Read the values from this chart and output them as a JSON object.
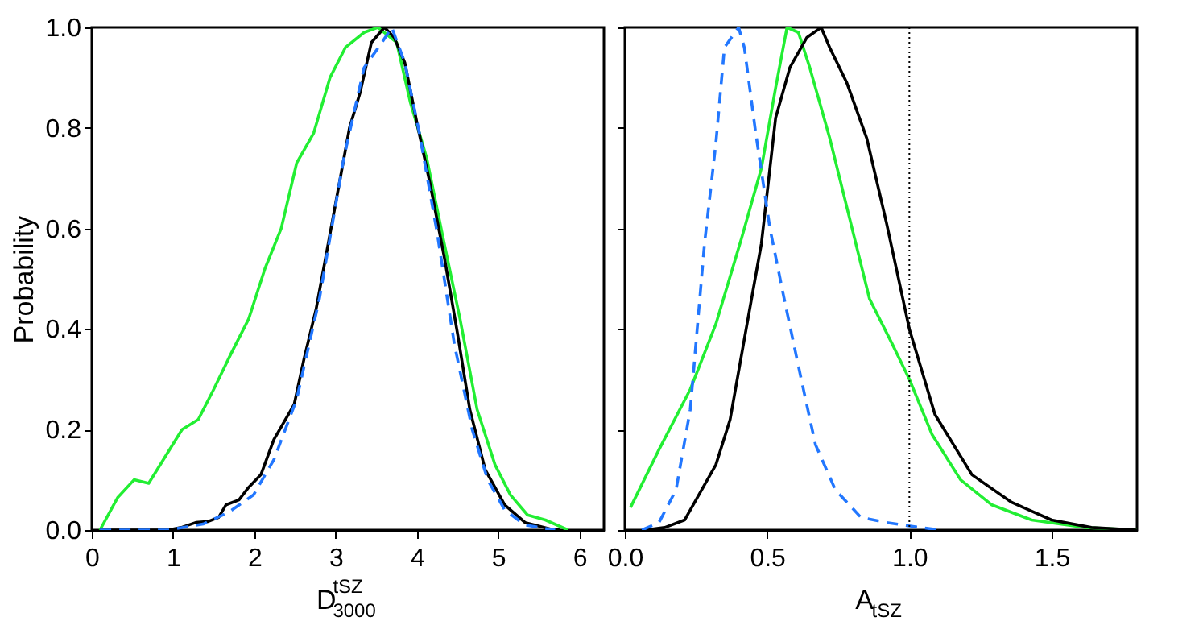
{
  "chart_data": [
    {
      "type": "line",
      "xlabel": "D$^{tSZ}$$_{3000}$",
      "ylabel": "Probability",
      "xlim": [
        0,
        6.3
      ],
      "xticks": [
        0,
        1,
        2,
        3,
        4,
        5,
        6
      ],
      "ylim": [
        0,
        1.0
      ],
      "yticks": [
        {
          "value": 0,
          "label": "0.0"
        },
        {
          "value": 0.2,
          "label": "0.2"
        },
        {
          "value": 0.4,
          "label": "0.4"
        },
        {
          "value": 0.6,
          "label": "0.6"
        },
        {
          "value": 0.8,
          "label": "0.8"
        },
        {
          "value": 1.0,
          "label": "1.0"
        }
      ],
      "grid": false,
      "series": [
        {
          "color": "#22ee33",
          "line_style": "solid",
          "x": [
            0.1,
            0.32,
            0.52,
            0.7,
            1.11,
            1.31,
            1.5,
            1.71,
            1.93,
            2.13,
            2.33,
            2.52,
            2.73,
            2.93,
            3.12,
            3.35,
            3.52,
            3.75,
            3.92,
            4.12,
            4.31,
            4.53,
            4.74,
            4.96,
            5.15,
            5.36,
            5.58,
            5.86
          ],
          "values": [
            0,
            0.065,
            0.1,
            0.093,
            0.2,
            0.22,
            0.28,
            0.35,
            0.42,
            0.52,
            0.6,
            0.73,
            0.79,
            0.9,
            0.96,
            0.99,
            1.0,
            0.97,
            0.85,
            0.74,
            0.59,
            0.42,
            0.24,
            0.13,
            0.07,
            0.03,
            0.02,
            0
          ]
        },
        {
          "color": "#000000",
          "line_style": "solid",
          "x": [
            0.1,
            0.94,
            1.1,
            1.28,
            1.43,
            1.56,
            1.65,
            1.81,
            1.93,
            2.08,
            2.24,
            2.49,
            2.61,
            2.76,
            2.92,
            3.17,
            3.3,
            3.44,
            3.6,
            3.72,
            3.85,
            4.0,
            4.16,
            4.34,
            4.5,
            4.65,
            4.84,
            5.08,
            5.33,
            5.64,
            5.76
          ],
          "values": [
            0,
            0,
            0.005,
            0.015,
            0.017,
            0.025,
            0.05,
            0.06,
            0.085,
            0.11,
            0.18,
            0.25,
            0.34,
            0.44,
            0.58,
            0.8,
            0.87,
            0.97,
            1.0,
            0.98,
            0.93,
            0.81,
            0.69,
            0.54,
            0.39,
            0.24,
            0.12,
            0.05,
            0.015,
            0.002,
            0
          ]
        },
        {
          "color": "#2277ff",
          "line_style": "dashed",
          "x": [
            0.1,
            0.94,
            1.37,
            1.68,
            1.99,
            2.24,
            2.52,
            2.8,
            3.1,
            3.35,
            3.57,
            3.69,
            3.85,
            4.03,
            4.25,
            4.46,
            4.68,
            4.87,
            5.08,
            5.33,
            5.7
          ],
          "values": [
            0,
            0,
            0.012,
            0.035,
            0.07,
            0.14,
            0.26,
            0.46,
            0.74,
            0.92,
            0.97,
            1.0,
            0.93,
            0.79,
            0.59,
            0.37,
            0.2,
            0.1,
            0.04,
            0.01,
            0
          ]
        }
      ]
    },
    {
      "type": "line",
      "xlabel": "A$_{tSZ}$",
      "xlim": [
        0,
        1.8
      ],
      "xticks": [
        {
          "value": 0,
          "label": "0.0"
        },
        {
          "value": 0.5,
          "label": "0.5"
        },
        {
          "value": 1.0,
          "label": "1.0"
        },
        {
          "value": 1.5,
          "label": "1.5"
        }
      ],
      "ylim": [
        0,
        1.0
      ],
      "yticks": [
        {
          "value": 0,
          "label": null
        },
        {
          "value": 0.2,
          "label": null
        },
        {
          "value": 0.4,
          "label": null
        },
        {
          "value": 0.6,
          "label": null
        },
        {
          "value": 0.8,
          "label": null
        },
        {
          "value": 1.0,
          "label": null
        }
      ],
      "tick_labels": "x",
      "grid": false,
      "ref_lines": [
        {
          "axis": "x",
          "value": 1.0,
          "color": "#000000",
          "line_style": "dotted"
        }
      ],
      "series": [
        {
          "color": "#22ee33",
          "line_style": "solid",
          "x": [
            0.02,
            0.12,
            0.23,
            0.32,
            0.41,
            0.48,
            0.53,
            0.57,
            0.61,
            0.65,
            0.72,
            0.79,
            0.86,
            0.94,
            1.0,
            1.08,
            1.18,
            1.29,
            1.43,
            1.62,
            1.8
          ],
          "values": [
            0.045,
            0.16,
            0.28,
            0.41,
            0.58,
            0.72,
            0.88,
            1.0,
            0.99,
            0.92,
            0.78,
            0.62,
            0.46,
            0.37,
            0.3,
            0.19,
            0.1,
            0.05,
            0.02,
            0.005,
            0
          ]
        },
        {
          "color": "#000000",
          "line_style": "solid",
          "x": [
            0.07,
            0.14,
            0.21,
            0.32,
            0.37,
            0.42,
            0.48,
            0.53,
            0.58,
            0.64,
            0.69,
            0.72,
            0.78,
            0.85,
            0.92,
            1.0,
            1.09,
            1.22,
            1.36,
            1.5,
            1.64,
            1.8
          ],
          "values": [
            0,
            0.005,
            0.02,
            0.13,
            0.22,
            0.38,
            0.57,
            0.82,
            0.92,
            0.98,
            1.0,
            0.96,
            0.89,
            0.78,
            0.61,
            0.4,
            0.23,
            0.11,
            0.055,
            0.02,
            0.005,
            0
          ]
        },
        {
          "color": "#2277ff",
          "line_style": "dashed",
          "x": [
            0.06,
            0.12,
            0.18,
            0.23,
            0.28,
            0.32,
            0.35,
            0.4,
            0.42,
            0.46,
            0.51,
            0.56,
            0.62,
            0.67,
            0.74,
            0.83,
            0.92,
            1.04,
            1.11
          ],
          "values": [
            0,
            0.015,
            0.08,
            0.24,
            0.57,
            0.77,
            0.96,
            1.0,
            0.96,
            0.79,
            0.6,
            0.46,
            0.3,
            0.17,
            0.08,
            0.025,
            0.015,
            0.005,
            0
          ]
        }
      ]
    }
  ]
}
